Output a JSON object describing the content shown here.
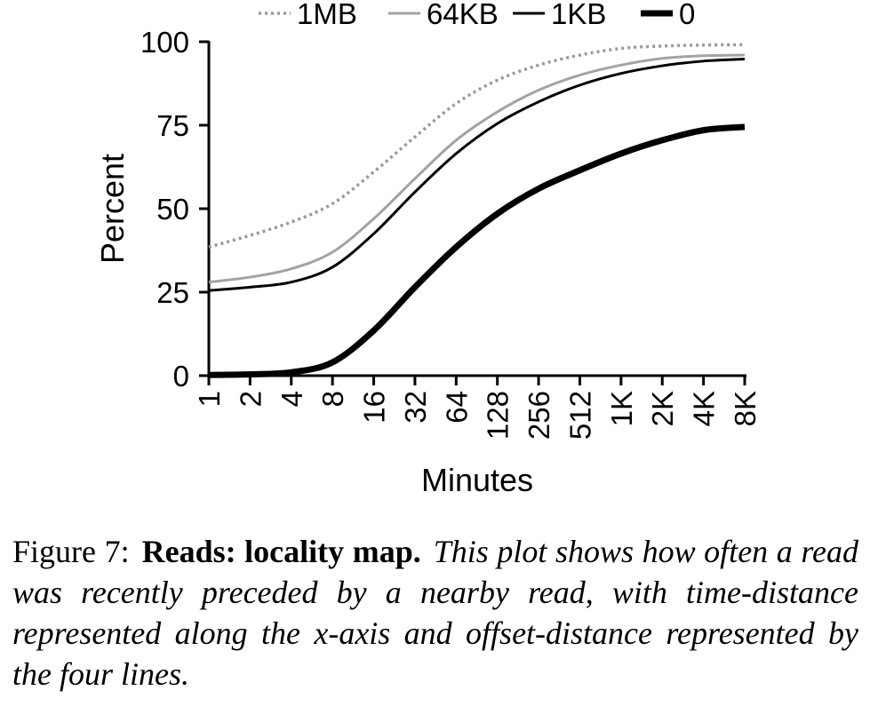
{
  "chart_data": {
    "type": "line",
    "xlabel": "Minutes",
    "ylabel": "Percent",
    "x_scale": "log2",
    "categories": [
      "1",
      "2",
      "4",
      "8",
      "16",
      "32",
      "64",
      "128",
      "256",
      "512",
      "1K",
      "2K",
      "4K",
      "8K"
    ],
    "ylim": [
      0,
      100
    ],
    "yticks": [
      0,
      25,
      50,
      75,
      100
    ],
    "grid": false,
    "legend_position": "top",
    "series": [
      {
        "name": "1MB",
        "style": "dotted",
        "color": "#999999",
        "values": [
          38.5,
          42.0,
          46.0,
          51.5,
          61.0,
          71.5,
          81.5,
          88.5,
          93.0,
          96.0,
          98.0,
          98.7,
          99.0,
          99.1
        ]
      },
      {
        "name": "64KB",
        "style": "solid",
        "color": "#a3a3a3",
        "values": [
          28.0,
          29.5,
          32.0,
          37.0,
          47.0,
          59.0,
          70.5,
          79.0,
          85.5,
          90.0,
          93.0,
          95.0,
          95.8,
          96.0
        ]
      },
      {
        "name": "1KB",
        "style": "solid",
        "color": "#000000",
        "values": [
          25.5,
          26.5,
          28.0,
          32.5,
          42.5,
          55.0,
          66.5,
          75.5,
          82.0,
          87.0,
          90.5,
          92.8,
          94.2,
          94.8
        ]
      },
      {
        "name": "0",
        "style": "thick",
        "color": "#000000",
        "values": [
          0.2,
          0.4,
          1.0,
          4.0,
          13.5,
          26.5,
          38.5,
          48.5,
          56.0,
          61.5,
          66.5,
          70.5,
          73.5,
          74.5
        ]
      }
    ]
  },
  "caption": {
    "label": "Figure 7:",
    "title": "Reads: locality map.",
    "body": "This plot shows how often a read was recently preceded by a nearby read, with time-distance represented along the x-axis and offset-distance represented by the four lines."
  }
}
